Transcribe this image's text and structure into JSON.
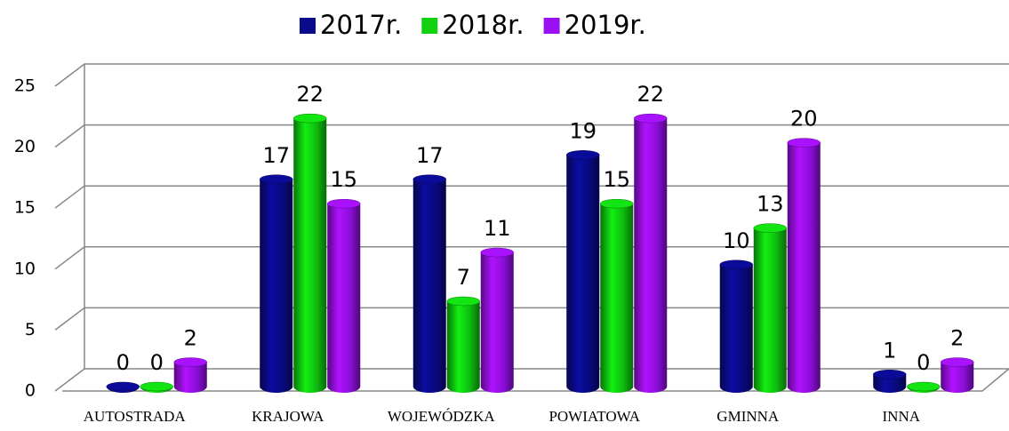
{
  "chart_data": {
    "type": "bar3d",
    "categories": [
      "AUTOSTRADA",
      "KRAJOWA",
      "WOJEWÓDZKA",
      "POWIATOWA",
      "GMINNA",
      "INNA"
    ],
    "series": [
      {
        "name": "2017r.",
        "color": "#0a0a8c",
        "values": [
          0,
          17,
          17,
          19,
          10,
          1
        ]
      },
      {
        "name": "2018r.",
        "color": "#10d010",
        "values": [
          0,
          22,
          7,
          15,
          13,
          0
        ]
      },
      {
        "name": "2019r.",
        "color": "#9a10f0",
        "values": [
          2,
          15,
          11,
          22,
          20,
          2
        ]
      }
    ],
    "ylim": [
      0,
      25
    ],
    "yticks": [
      0,
      5,
      10,
      15,
      20,
      25
    ],
    "grid": true,
    "legend": "top"
  }
}
